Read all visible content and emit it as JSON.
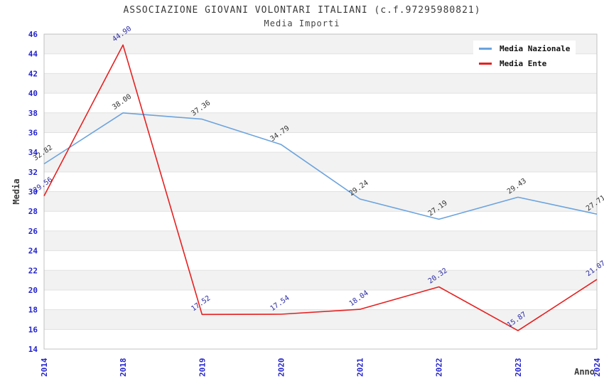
{
  "header": {
    "title": "ASSOCIAZIONE GIOVANI VOLONTARI ITALIANI (c.f.97295980821)",
    "subtitle": "Media Importi"
  },
  "legend": {
    "items": [
      {
        "label": "Media Nazionale",
        "color": "#6BA3DE"
      },
      {
        "label": "Media Ente",
        "color": "#E62020"
      }
    ]
  },
  "chart_data": {
    "type": "line",
    "title": "ASSOCIAZIONE GIOVANI VOLONTARI ITALIANI (c.f.97295980821)",
    "subtitle": "Media Importi",
    "x": [
      "2014",
      "2018",
      "2019",
      "2020",
      "2021",
      "2022",
      "2023",
      "2024"
    ],
    "series": [
      {
        "name": "Media Nazionale",
        "color": "#6BA3DE",
        "label_color": "#333333",
        "values": [
          32.82,
          38.0,
          37.36,
          34.79,
          29.24,
          27.19,
          29.43,
          27.71
        ]
      },
      {
        "name": "Media Ente",
        "color": "#E62020",
        "label_color": "#2B2BA6",
        "values": [
          29.56,
          44.9,
          17.52,
          17.54,
          18.04,
          20.32,
          15.87,
          21.07
        ]
      }
    ],
    "xlabel": "Anno",
    "ylabel": "Media",
    "ylim": [
      14,
      46
    ],
    "ytick_step": 2,
    "grid": true,
    "legend_position": "top-right",
    "band_color": "#F2F2F2",
    "grid_color": "#E1E1E1",
    "border_color": "#C0C0C0",
    "tick_label_color": "#2323CC",
    "axis_title_color": "#3A3A3A"
  }
}
